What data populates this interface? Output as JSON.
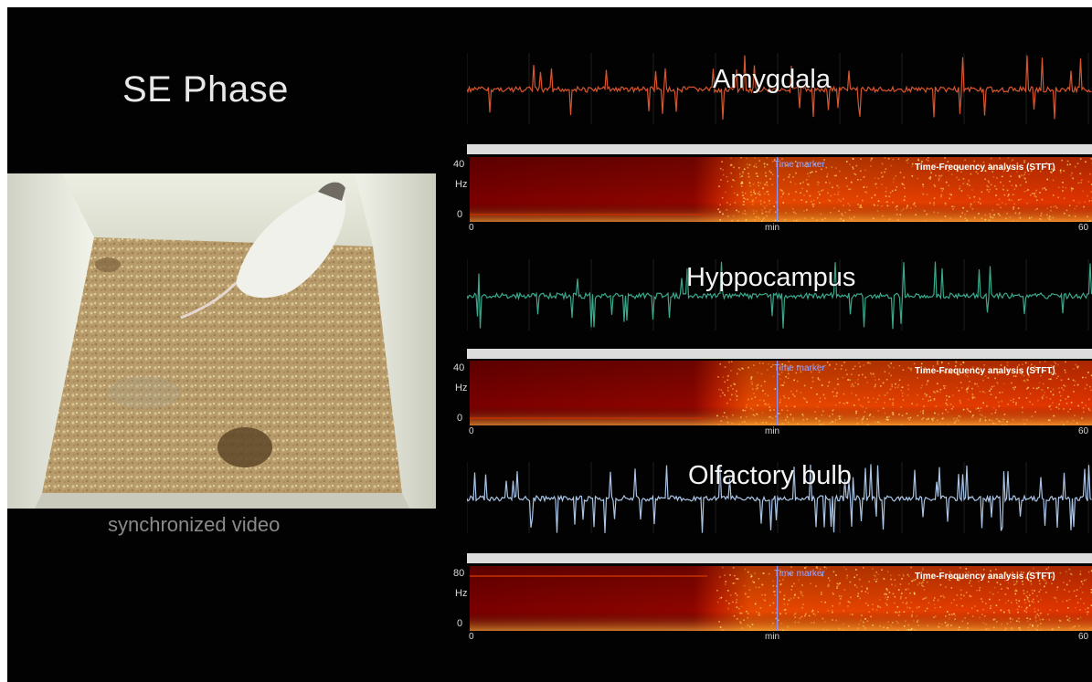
{
  "title": "SE Phase",
  "video": {
    "caption": "synchronized video"
  },
  "channels": [
    {
      "name": "Amygdala",
      "color": "#d9552e",
      "y_max": "40",
      "y_unit": "Hz",
      "y_min": "0",
      "x_start": "0",
      "x_mid": "min",
      "x_end": "60",
      "marker_label": "Time marker",
      "tf_label": "Time-Frequency analysis (STFT)"
    },
    {
      "name": "Hyppocampus",
      "color": "#3aa88c",
      "y_max": "40",
      "y_unit": "Hz",
      "y_min": "0",
      "x_start": "0",
      "x_mid": "min",
      "x_end": "60",
      "marker_label": "Time marker",
      "tf_label": "Time-Frequency analysis (STFT)"
    },
    {
      "name": "Olfactory bulb",
      "color": "#a9c4e6",
      "y_max": "80",
      "y_unit": "Hz",
      "y_min": "0",
      "x_start": "0",
      "x_mid": "min",
      "x_end": "60",
      "marker_label": "Time marker",
      "tf_label": "Time-Frequency analysis (STFT)"
    }
  ]
}
